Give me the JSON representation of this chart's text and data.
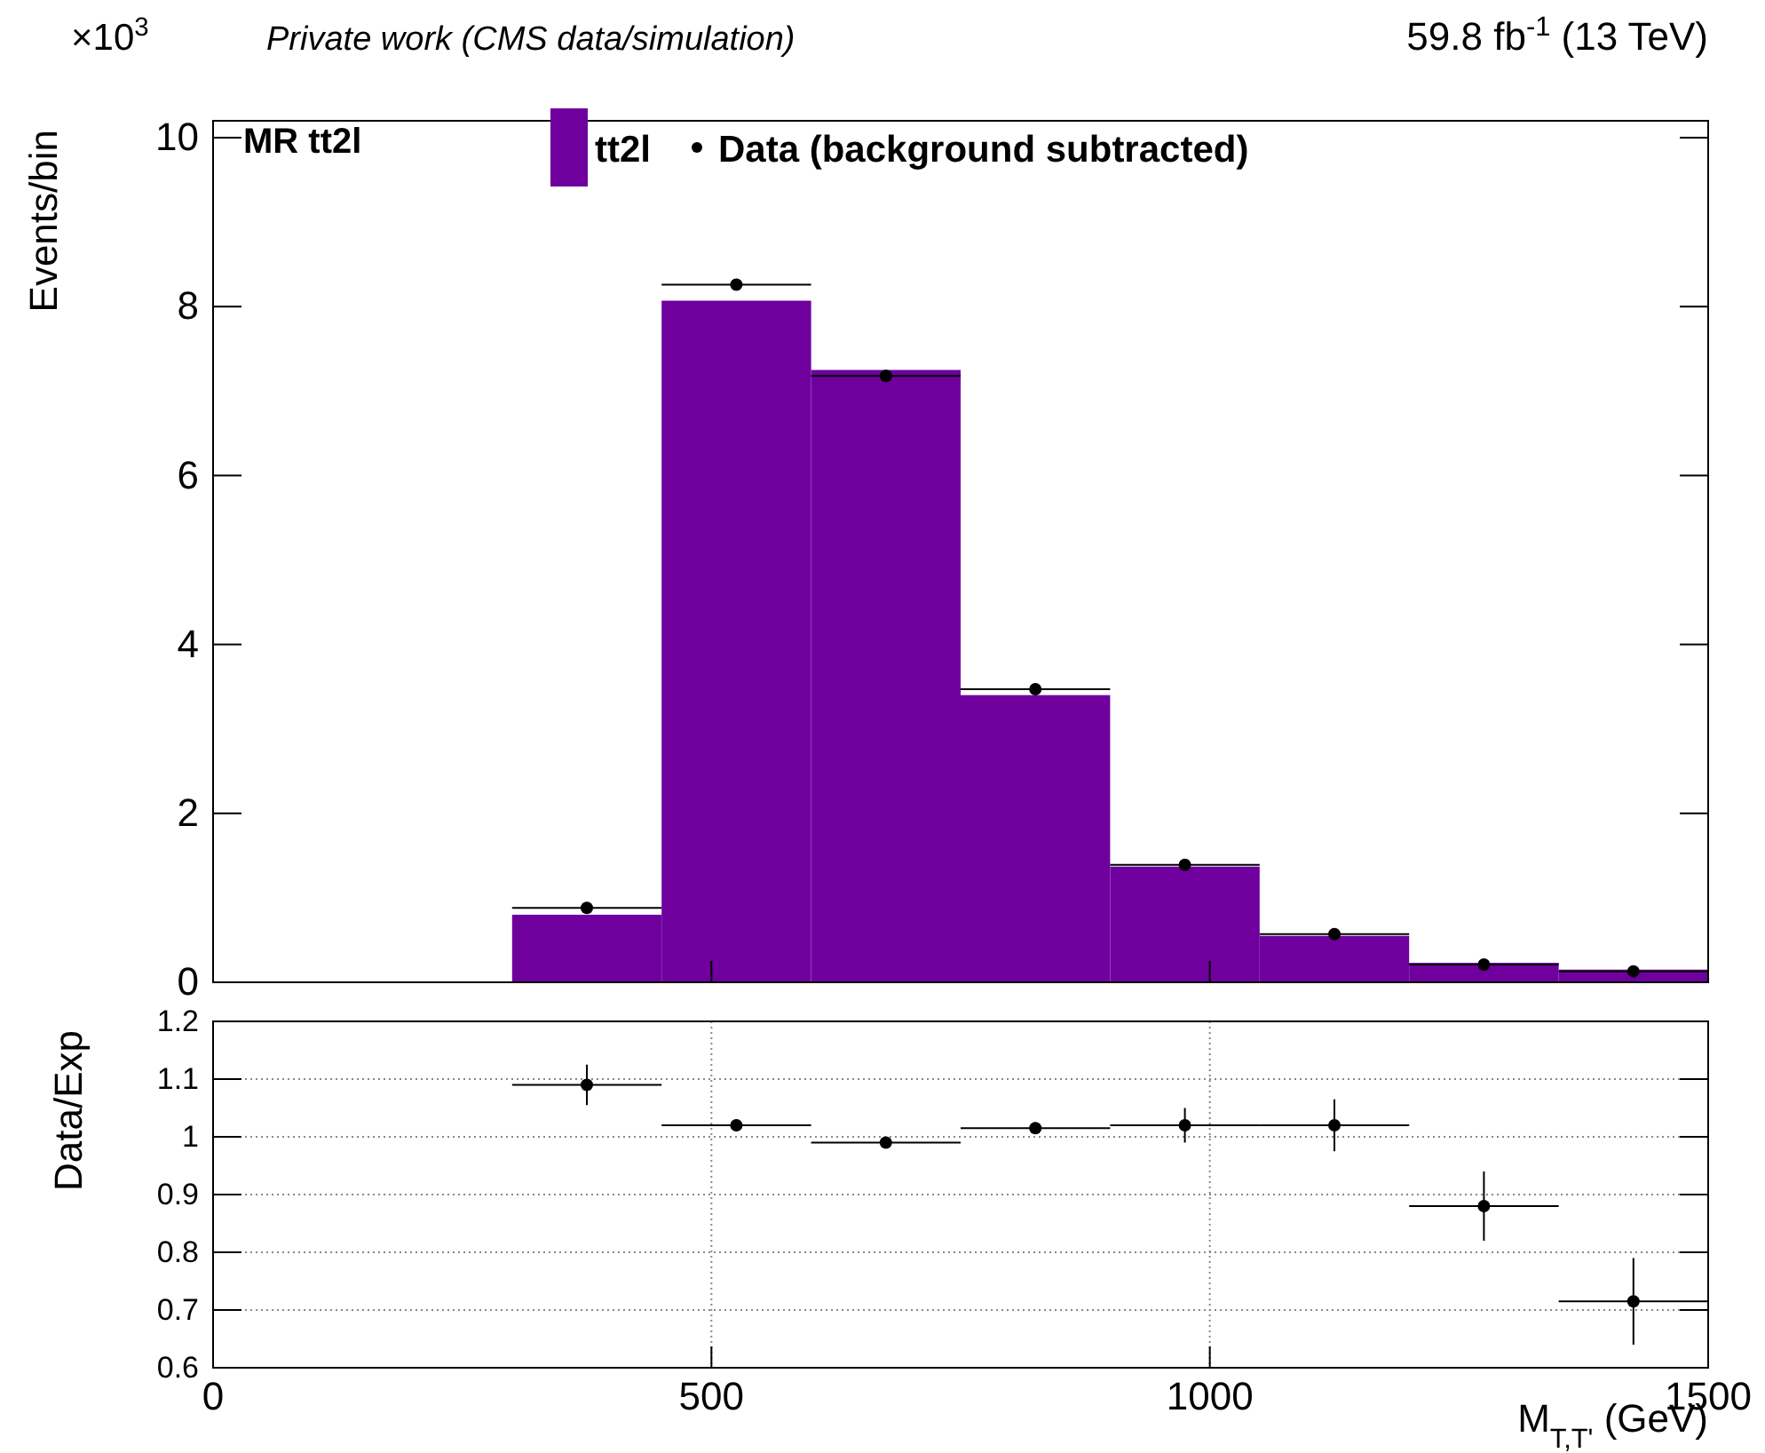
{
  "chart_data": [
    {
      "type": "histogram",
      "ylabel": "Events/bin",
      "title": "Private work (CMS data/simulation)",
      "subtitle": "59.8 fb$^{-1}$ (13 TeV)",
      "annotations": [
        "×10$^{3}$",
        "MR tt2l"
      ],
      "bins": [
        0,
        150,
        300,
        450,
        600,
        750,
        900,
        1050,
        1200,
        1350,
        1500
      ],
      "series": [
        {
          "name": "tt2l",
          "type": "histogram",
          "color": "#6f009e",
          "values": [
            0,
            0,
            0.8,
            8.07,
            7.25,
            3.4,
            1.37,
            0.55,
            0.23,
            0.15
          ]
        },
        {
          "name": "Data (background subtracted)",
          "type": "scatter",
          "color": "#000000",
          "x": [
            375,
            525,
            675,
            825,
            975,
            1125,
            1275,
            1425
          ],
          "values": [
            0.88,
            8.26,
            7.18,
            3.47,
            1.39,
            0.57,
            0.21,
            0.13
          ],
          "xerrors": [
            75,
            75,
            75,
            75,
            75,
            75,
            75,
            75
          ]
        }
      ],
      "xlim": [
        0,
        1500
      ],
      "xticks": [
        0,
        500,
        1000,
        1500
      ],
      "ylim": [
        0,
        10.2
      ],
      "yticks": [
        0,
        2,
        4,
        6,
        8,
        10
      ],
      "tick_labels": "y",
      "legend": "top",
      "marker": "circle"
    },
    {
      "type": "scatter",
      "ylabel": "Data/Exp",
      "xlabel": "M$_{T,T'}$ (GeV)",
      "x": [
        375,
        525,
        675,
        825,
        975,
        1125,
        1275,
        1425
      ],
      "values": [
        1.09,
        1.02,
        0.99,
        1.015,
        1.02,
        1.02,
        0.88,
        0.715
      ],
      "errors": [
        0.035,
        0.01,
        0.01,
        0.01,
        0.03,
        0.045,
        0.06,
        0.075
      ],
      "xerrors": [
        75,
        75,
        75,
        75,
        75,
        75,
        75,
        75
      ],
      "color": "#000000",
      "xlim": [
        0,
        1500
      ],
      "xticks": [
        0,
        500,
        1000,
        1500
      ],
      "ylim": [
        0.6,
        1.2
      ],
      "yticks": [
        0.6,
        0.7,
        0.8,
        0.9,
        1,
        1.1,
        1.2
      ],
      "grid": true,
      "marker": "circle"
    }
  ]
}
